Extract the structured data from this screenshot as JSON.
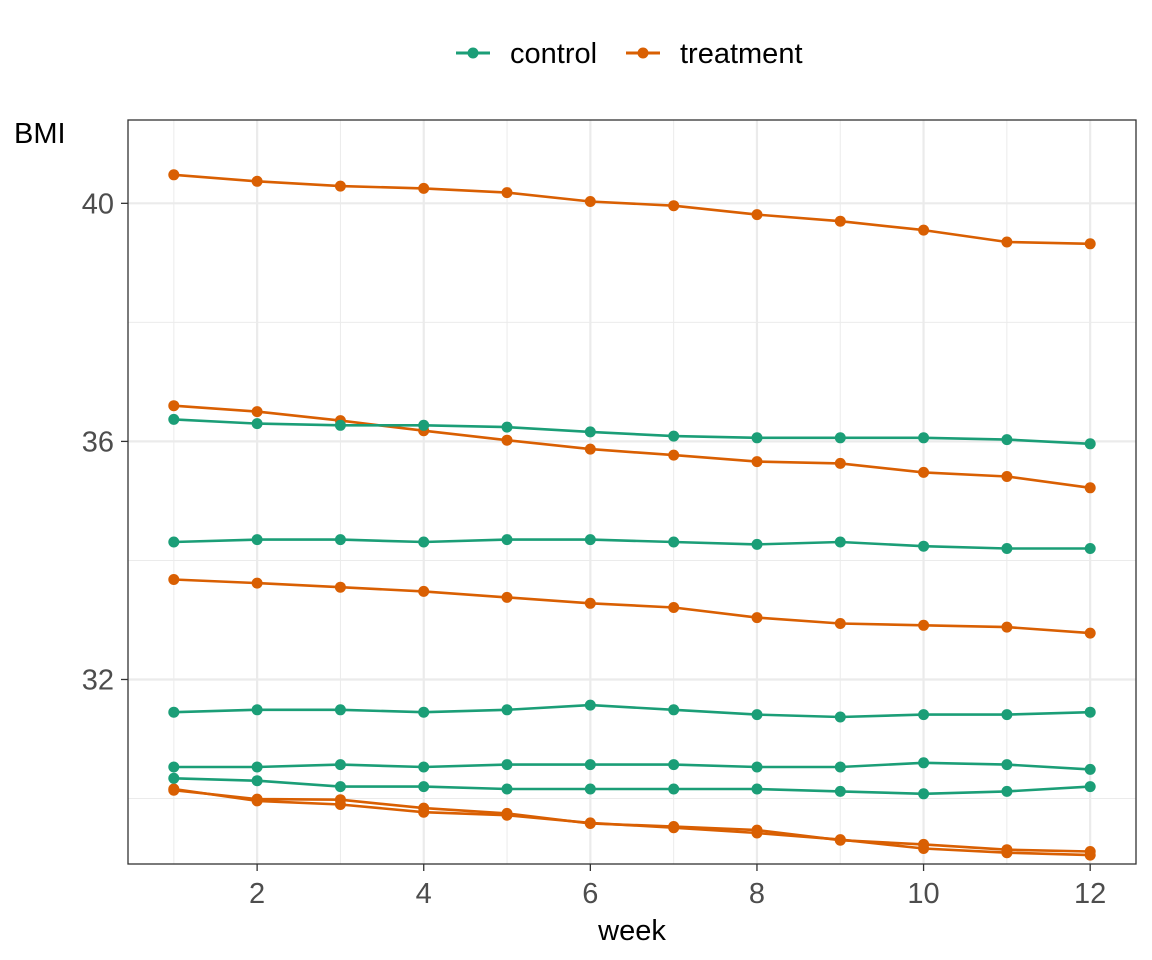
{
  "chart_data": {
    "type": "line",
    "xlabel": "week",
    "ylabel": "BMI",
    "xlim": [
      0.45,
      12.55
    ],
    "ylim": [
      28.9,
      41.4
    ],
    "x_ticks": [
      2,
      4,
      6,
      8,
      10,
      12
    ],
    "y_ticks": [
      32,
      36,
      40
    ],
    "grid": true,
    "legend_position": "top",
    "x": [
      1,
      2,
      3,
      4,
      5,
      6,
      7,
      8,
      9,
      10,
      11,
      12
    ],
    "groups": [
      {
        "label": "control",
        "color": "#1B9E77"
      },
      {
        "label": "treatment",
        "color": "#D95F02"
      }
    ],
    "series": [
      {
        "group": "treatment",
        "values": [
          40.48,
          40.37,
          40.29,
          40.25,
          40.18,
          40.03,
          39.96,
          39.81,
          39.7,
          39.55,
          39.35,
          39.32
        ]
      },
      {
        "group": "treatment",
        "values": [
          36.6,
          36.5,
          36.35,
          36.18,
          36.02,
          35.87,
          35.77,
          35.66,
          35.63,
          35.48,
          35.41,
          35.22
        ]
      },
      {
        "group": "treatment",
        "values": [
          33.68,
          33.62,
          33.55,
          33.48,
          33.38,
          33.28,
          33.21,
          33.04,
          32.94,
          32.91,
          32.88,
          32.78
        ]
      },
      {
        "group": "treatment",
        "values": [
          30.14,
          29.99,
          29.98,
          29.84,
          29.75,
          29.58,
          29.53,
          29.47,
          29.3,
          29.23,
          29.14,
          29.11
        ]
      },
      {
        "group": "treatment",
        "values": [
          30.16,
          29.96,
          29.9,
          29.77,
          29.72,
          29.59,
          29.51,
          29.42,
          29.31,
          29.16,
          29.09,
          29.05
        ]
      },
      {
        "group": "control",
        "values": [
          36.37,
          36.3,
          36.27,
          36.27,
          36.24,
          36.16,
          36.09,
          36.06,
          36.06,
          36.06,
          36.03,
          35.96
        ]
      },
      {
        "group": "control",
        "values": [
          34.31,
          34.35,
          34.35,
          34.31,
          34.35,
          34.35,
          34.31,
          34.27,
          34.31,
          34.24,
          34.2,
          34.2
        ]
      },
      {
        "group": "control",
        "values": [
          31.45,
          31.49,
          31.49,
          31.45,
          31.49,
          31.57,
          31.49,
          31.41,
          31.37,
          31.41,
          31.41,
          31.45
        ]
      },
      {
        "group": "control",
        "values": [
          30.53,
          30.53,
          30.57,
          30.53,
          30.57,
          30.57,
          30.57,
          30.53,
          30.53,
          30.6,
          30.57,
          30.49
        ]
      },
      {
        "group": "control",
        "values": [
          30.34,
          30.3,
          30.2,
          30.2,
          30.16,
          30.16,
          30.16,
          30.16,
          30.12,
          30.08,
          30.12,
          30.2
        ]
      }
    ]
  }
}
